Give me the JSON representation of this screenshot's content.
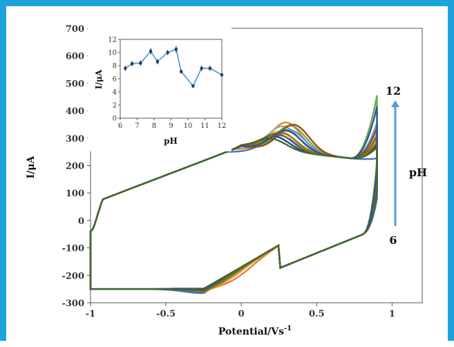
{
  "chart_data": [
    {
      "type": "line",
      "title": "",
      "xlabel": "Potential/Vs",
      "xlabel_superscript": "-1",
      "ylabel": "I/μA",
      "xlim": [
        -1,
        1.2
      ],
      "ylim": [
        -300,
        700
      ],
      "xticks": [
        "-1",
        "-0.5",
        "0",
        "0.5",
        "1"
      ],
      "yticks": [
        "-300",
        "-200",
        "-100",
        "0",
        "100",
        "200",
        "300",
        "400",
        "500",
        "600",
        "700"
      ],
      "grid": false,
      "legend": "none",
      "annotation": {
        "top": "12",
        "bottom": "6",
        "axis": "pH",
        "arrow": "up"
      },
      "series": [
        {
          "color": "#4472c4",
          "peak_anodic": [
            0.25,
            300
          ],
          "peak_cathodic": [
            -0.25,
            -265
          ],
          "end_current": 200
        },
        {
          "color": "#ed7d31",
          "peak_anodic": [
            0.3,
            345
          ],
          "peak_cathodic": [
            -0.05,
            -280
          ],
          "end_current": 320
        },
        {
          "color": "#a5a5a5",
          "peak_anodic": [
            0.28,
            330
          ],
          "peak_cathodic": [
            -0.1,
            -270
          ],
          "end_current": 290
        },
        {
          "color": "#ffc000",
          "peak_anodic": [
            0.26,
            310
          ],
          "peak_cathodic": [
            -0.12,
            -268
          ],
          "end_current": 270
        },
        {
          "color": "#5b9bd5",
          "peak_anodic": [
            0.32,
            320
          ],
          "peak_cathodic": [
            -0.15,
            -262
          ],
          "end_current": 330
        },
        {
          "color": "#70ad47",
          "peak_anodic": [
            0.33,
            335
          ],
          "peak_cathodic": [
            -0.18,
            -258
          ],
          "end_current": 430
        },
        {
          "color": "#264478",
          "peak_anodic": [
            0.22,
            290
          ],
          "peak_cathodic": [
            -0.2,
            -255
          ],
          "end_current": 250
        },
        {
          "color": "#9e480e",
          "peak_anodic": [
            0.35,
            340
          ],
          "peak_cathodic": [
            -0.3,
            -250
          ],
          "end_current": 310
        },
        {
          "color": "#636363",
          "peak_anodic": [
            0.24,
            300
          ],
          "peak_cathodic": [
            -0.22,
            -260
          ],
          "end_current": 280
        },
        {
          "color": "#997300",
          "peak_anodic": [
            0.27,
            305
          ],
          "peak_cathodic": [
            -0.14,
            -265
          ],
          "end_current": 260
        },
        {
          "color": "#2f5597",
          "peak_anodic": [
            0.3,
            315
          ],
          "peak_cathodic": [
            -0.28,
            -252
          ],
          "end_current": 390
        },
        {
          "color": "#43682b",
          "peak_anodic": [
            0.2,
            280
          ],
          "peak_cathodic": [
            -0.35,
            -248
          ],
          "end_current": 240
        }
      ]
    },
    {
      "type": "line",
      "title": "",
      "xlabel": "pH",
      "ylabel": "I/μA",
      "xlim": [
        6,
        12
      ],
      "ylim": [
        0,
        12
      ],
      "xticks": [
        "6",
        "7",
        "8",
        "9",
        "10",
        "11",
        "12"
      ],
      "yticks": [
        "0",
        "2",
        "4",
        "6",
        "8",
        "10",
        "12"
      ],
      "grid": false,
      "legend": "none",
      "series": [
        {
          "color": "#5b9bd5",
          "x": [
            6.3,
            6.7,
            7.2,
            7.8,
            8.2,
            8.8,
            9.3,
            9.6,
            10.3,
            10.8,
            11.3,
            12
          ],
          "values": [
            7.6,
            8.3,
            8.4,
            10.2,
            8.6,
            10.0,
            10.5,
            7.1,
            4.9,
            7.6,
            7.6,
            6.6
          ],
          "error": [
            0.4,
            0.4,
            0.4,
            0.5,
            0.4,
            0.4,
            0.5,
            0.3,
            0.3,
            0.4,
            0.4,
            0.2
          ]
        }
      ]
    }
  ]
}
